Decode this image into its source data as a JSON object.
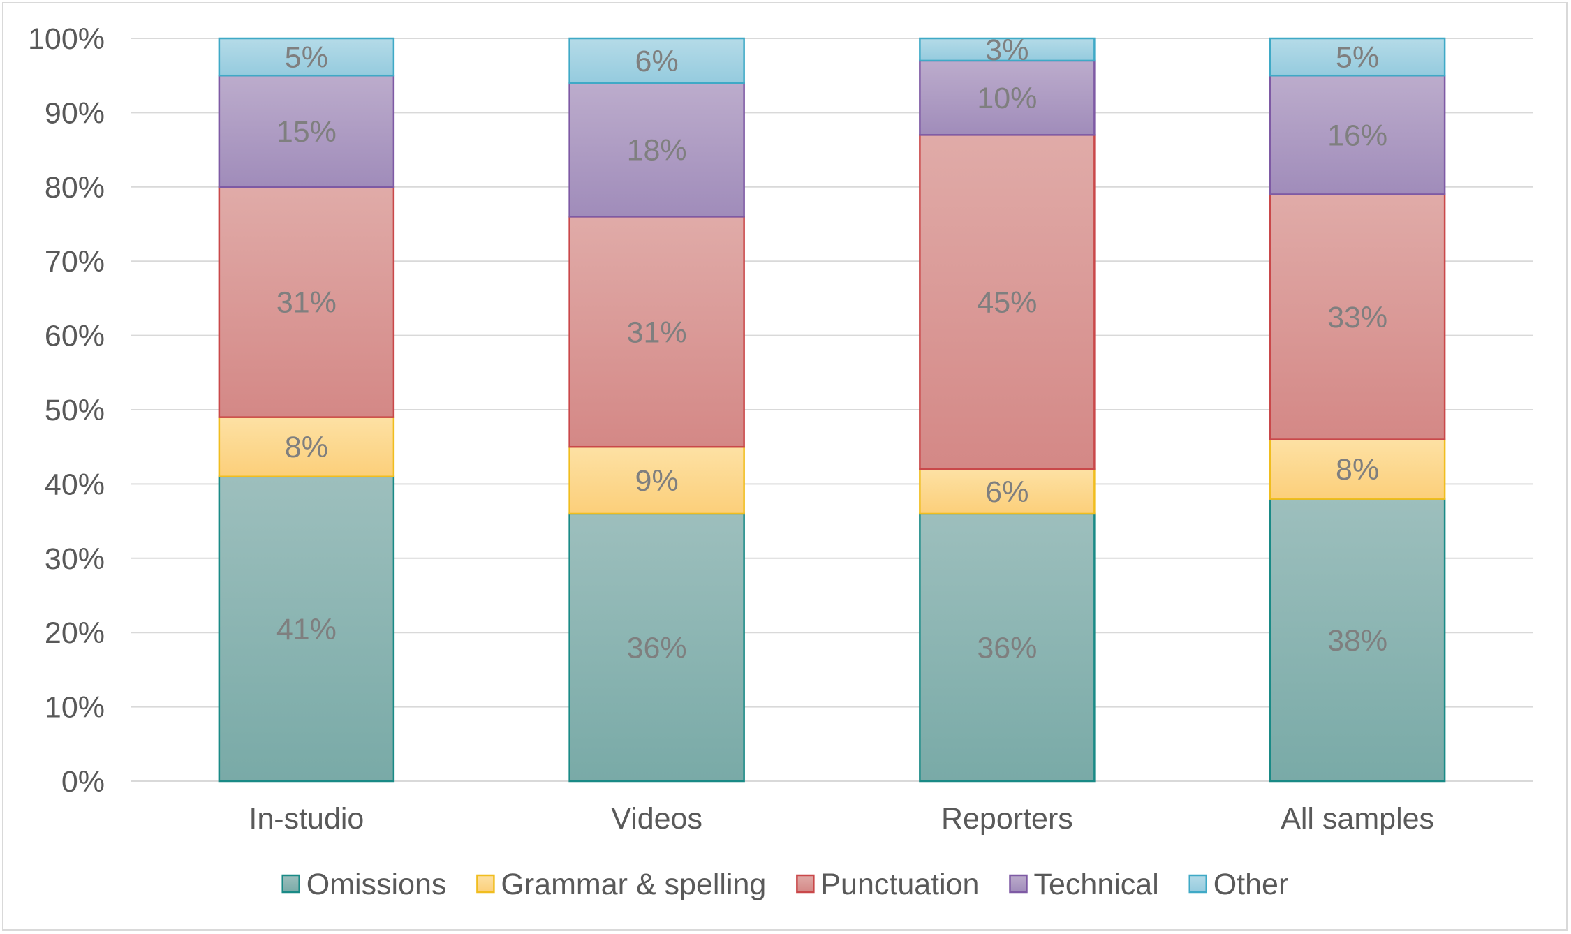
{
  "chart_data": {
    "type": "bar",
    "stacked": true,
    "percent_stacked": true,
    "categories": [
      "In-studio",
      "Videos",
      "Reporters",
      "All samples"
    ],
    "series": [
      {
        "name": "Omissions",
        "values": [
          41,
          36,
          36,
          38
        ],
        "labels": [
          "41%",
          "36%",
          "36%",
          "38%"
        ],
        "fill_top": "#9dbfbd",
        "fill_bottom": "#79aaa7",
        "stroke": "#1a8a86"
      },
      {
        "name": "Grammar & spelling",
        "values": [
          8,
          9,
          6,
          8
        ],
        "labels": [
          "8%",
          "9%",
          "6%",
          "8%"
        ],
        "fill_top": "#fde1a4",
        "fill_bottom": "#fccf7a",
        "stroke": "#f0bd1f"
      },
      {
        "name": "Punctuation",
        "values": [
          31,
          31,
          45,
          33
        ],
        "labels": [
          "31%",
          "31%",
          "45%",
          "33%"
        ],
        "fill_top": "#e0aba8",
        "fill_bottom": "#d48886",
        "stroke": "#c9484a"
      },
      {
        "name": "Technical",
        "values": [
          15,
          18,
          10,
          16
        ],
        "labels": [
          "15%",
          "18%",
          "10%",
          "16%"
        ],
        "fill_top": "#bcaccc",
        "fill_bottom": "#a08cba",
        "stroke": "#7e5aa4"
      },
      {
        "name": "Other",
        "values": [
          5,
          6,
          3,
          5
        ],
        "labels": [
          "5%",
          "6%",
          "3%",
          "5%"
        ],
        "fill_top": "#b5dbe8",
        "fill_bottom": "#95cbde",
        "stroke": "#3fa9c6"
      }
    ],
    "yticks": [
      "0%",
      "10%",
      "20%",
      "30%",
      "40%",
      "50%",
      "60%",
      "70%",
      "80%",
      "90%",
      "100%"
    ],
    "ylim": [
      0,
      100
    ],
    "grid": true,
    "legend_position": "bottom",
    "title": "",
    "xlabel": "",
    "ylabel": ""
  }
}
